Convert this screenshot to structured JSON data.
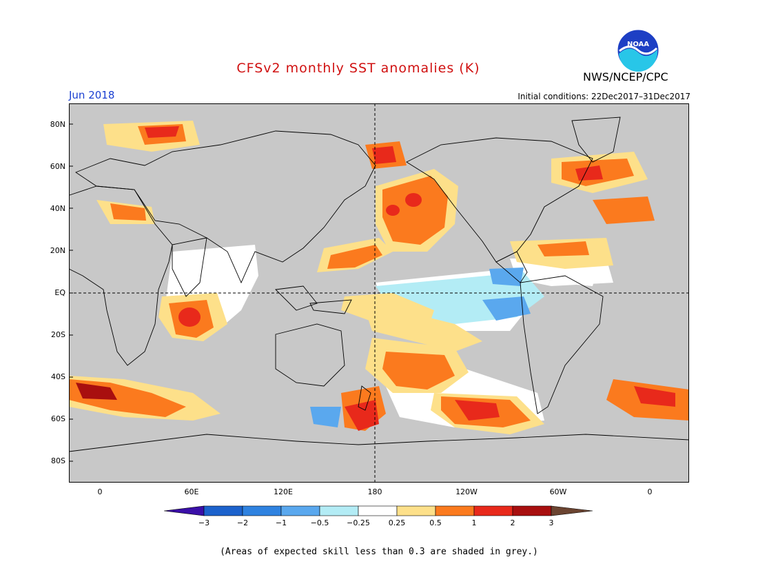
{
  "title": "CFSv2 monthly SST anomalies (K)",
  "agency": "NWS/NCEP/CPC",
  "logo_text": "NOAA",
  "month": "Jun 2018",
  "initial_conditions": "Initial conditions: 22Dec2017–31Dec2017",
  "lat_labels": [
    "80N",
    "60N",
    "40N",
    "20N",
    "EQ",
    "20S",
    "40S",
    "60S",
    "80S"
  ],
  "lon_labels": [
    "0",
    "60E",
    "120E",
    "180",
    "120W",
    "60W",
    "0"
  ],
  "colorbar": {
    "labels": [
      "−3",
      "−2",
      "−1",
      "−0.5",
      "−0.25",
      "0.25",
      "0.5",
      "1",
      "2",
      "3"
    ],
    "colors": [
      "#3a0fa8",
      "#1c62cc",
      "#2f82e0",
      "#5aa8ee",
      "#b3ecf5",
      "#ffffff",
      "#fde08a",
      "#fb7a1e",
      "#e8291b",
      "#a80f0f",
      "#6b4431"
    ]
  },
  "note": "(Areas of expected skill less than 0.3 are shaded in grey.)",
  "map_colors": {
    "grey": "#c8c8c8",
    "land": "#ffffff",
    "coast": "#000000"
  }
}
